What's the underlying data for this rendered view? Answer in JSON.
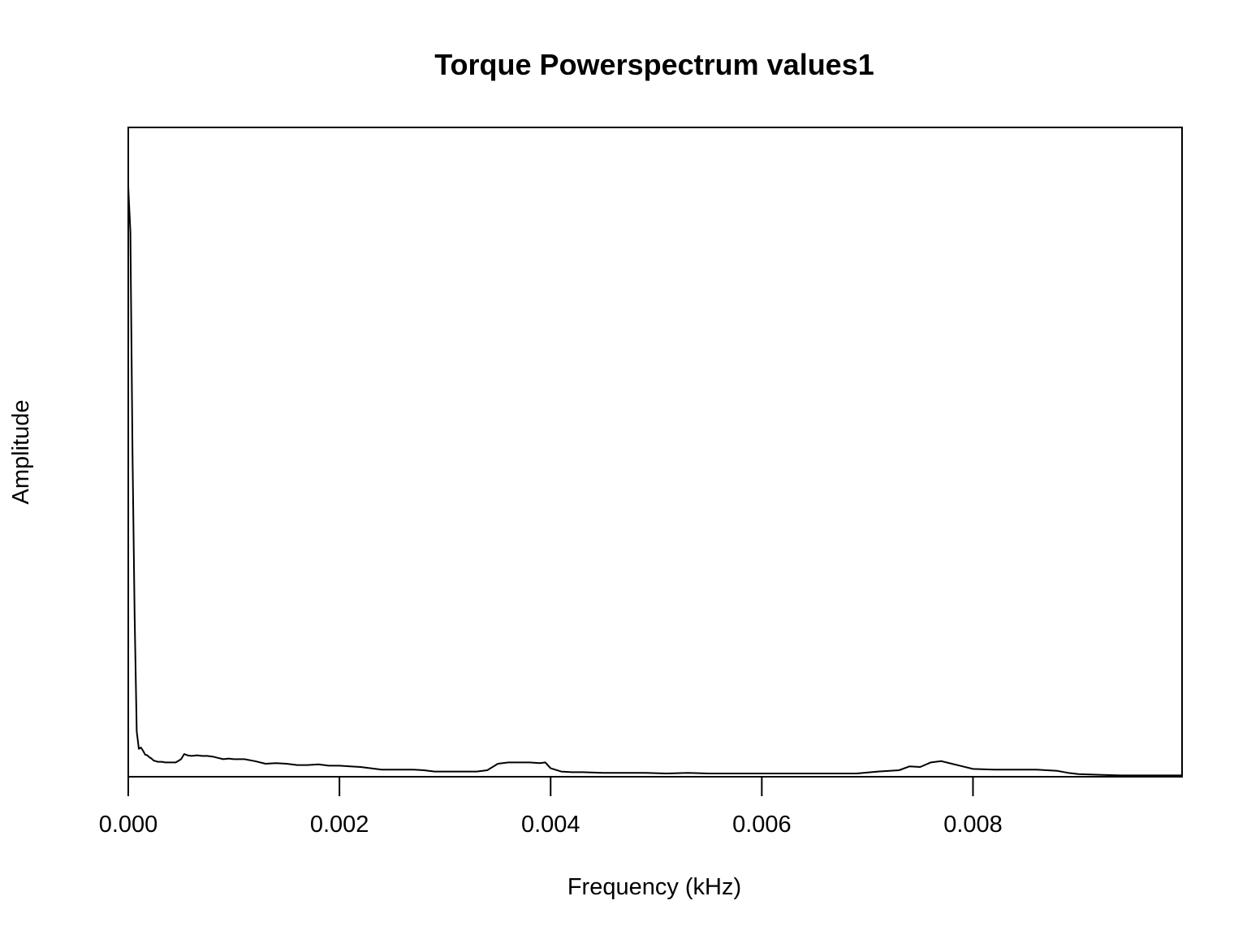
{
  "chart_data": {
    "type": "line",
    "title": "Torque Powerspectrum values1",
    "xlabel": "Frequency (kHz)",
    "ylabel": "Amplitude",
    "xlim": [
      0,
      0.00998
    ],
    "ylim": [
      0,
      1
    ],
    "x_ticks": [
      0.0,
      0.002,
      0.004,
      0.006,
      0.008
    ],
    "x_tick_labels": [
      "0.000",
      "0.002",
      "0.004",
      "0.006",
      "0.008"
    ],
    "y_ticks_shown": false,
    "grid": false,
    "legend": "none",
    "line_color": "#000000",
    "series": [
      {
        "x": [
          0.0,
          2e-05,
          4e-05,
          6e-05,
          8e-05,
          0.0001,
          0.00012,
          0.00014,
          0.00016,
          0.00018,
          0.0002,
          0.00022,
          0.00024,
          0.00026,
          0.00028,
          0.0003,
          0.00032,
          0.00035,
          0.0004,
          0.00045,
          0.0005,
          0.00053,
          0.00056,
          0.0006,
          0.00065,
          0.0007,
          0.00075,
          0.0008,
          0.00085,
          0.0009,
          0.00095,
          0.001,
          0.0011,
          0.0012,
          0.0013,
          0.0014,
          0.0015,
          0.0016,
          0.0017,
          0.0018,
          0.0019,
          0.002,
          0.0021,
          0.0022,
          0.0023,
          0.0024,
          0.0025,
          0.0026,
          0.0027,
          0.0028,
          0.0029,
          0.003,
          0.0031,
          0.0032,
          0.0033,
          0.0034,
          0.0035,
          0.0036,
          0.0037,
          0.0038,
          0.0039,
          0.00395,
          0.004,
          0.0041,
          0.0042,
          0.0043,
          0.0045,
          0.0047,
          0.0049,
          0.0051,
          0.0053,
          0.0055,
          0.0057,
          0.0059,
          0.0061,
          0.0063,
          0.0065,
          0.0067,
          0.0069,
          0.0071,
          0.0073,
          0.0074,
          0.0075,
          0.0076,
          0.0077,
          0.0078,
          0.0079,
          0.008,
          0.0082,
          0.0084,
          0.0086,
          0.0087,
          0.0088,
          0.0089,
          0.009,
          0.0092,
          0.0094,
          0.0096,
          0.0098,
          0.00998
        ],
        "y": [
          0.908,
          0.84,
          0.5,
          0.25,
          0.07,
          0.043,
          0.045,
          0.04,
          0.034,
          0.033,
          0.03,
          0.028,
          0.025,
          0.024,
          0.023,
          0.023,
          0.023,
          0.022,
          0.022,
          0.022,
          0.027,
          0.035,
          0.033,
          0.032,
          0.033,
          0.032,
          0.032,
          0.031,
          0.029,
          0.027,
          0.028,
          0.027,
          0.027,
          0.024,
          0.02,
          0.021,
          0.02,
          0.018,
          0.018,
          0.019,
          0.017,
          0.017,
          0.016,
          0.015,
          0.013,
          0.011,
          0.011,
          0.011,
          0.011,
          0.01,
          0.008,
          0.008,
          0.008,
          0.008,
          0.008,
          0.01,
          0.02,
          0.022,
          0.022,
          0.022,
          0.021,
          0.022,
          0.013,
          0.008,
          0.007,
          0.007,
          0.006,
          0.006,
          0.006,
          0.005,
          0.006,
          0.005,
          0.005,
          0.005,
          0.005,
          0.005,
          0.005,
          0.005,
          0.005,
          0.008,
          0.01,
          0.016,
          0.015,
          0.022,
          0.024,
          0.02,
          0.016,
          0.012,
          0.011,
          0.011,
          0.011,
          0.01,
          0.009,
          0.006,
          0.004,
          0.003,
          0.002,
          0.002,
          0.002,
          0.002
        ]
      }
    ]
  }
}
